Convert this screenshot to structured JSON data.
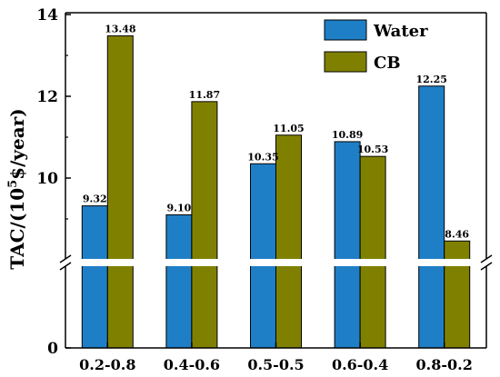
{
  "chart_data": {
    "type": "bar",
    "ylabel_main": "TAC/(10",
    "ylabel_sup": "5",
    "ylabel_rest": "$/year)",
    "categories": [
      "0.2-0.8",
      "0.4-0.6",
      "0.5-0.5",
      "0.6-0.4",
      "0.8-0.2"
    ],
    "series": [
      {
        "name": "Water",
        "color": "#1f7fc6",
        "values": [
          9.32,
          9.1,
          10.35,
          10.89,
          12.25
        ],
        "labels": [
          "9.32",
          "9.10",
          "10.35",
          "10.89",
          "12.25"
        ]
      },
      {
        "name": "CB",
        "color": "#808000",
        "values": [
          13.48,
          11.87,
          11.05,
          10.53,
          8.46
        ],
        "labels": [
          "13.48",
          "11.87",
          "11.05",
          "10.53",
          "8.46"
        ]
      }
    ],
    "y_ticks": [
      "0",
      "10",
      "12",
      "14"
    ],
    "ylim_upper": [
      8,
      14
    ],
    "axis_break": true,
    "legend_placement": "top-right"
  }
}
